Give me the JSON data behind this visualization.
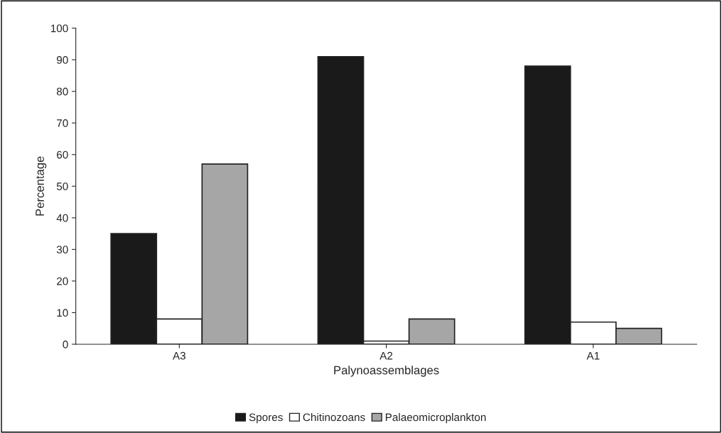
{
  "chart_data": {
    "type": "bar",
    "xlabel": "Palynoassemblages",
    "ylabel": "Percentage",
    "categories": [
      "A3",
      "A2",
      "A1"
    ],
    "series": [
      {
        "name": "Spores",
        "color": "#1a1a1a",
        "values": [
          35,
          91,
          88
        ]
      },
      {
        "name": "Chitinozoans",
        "color": "#ffffff",
        "values": [
          8,
          1,
          7
        ]
      },
      {
        "name": "Palaeomicroplankton",
        "color": "#a6a6a6",
        "values": [
          57,
          8,
          5
        ]
      }
    ],
    "ylim": [
      0,
      100
    ],
    "yticks": [
      0,
      10,
      20,
      30,
      40,
      50,
      60,
      70,
      80,
      90,
      100
    ],
    "grid": false,
    "legend": "bottom"
  }
}
